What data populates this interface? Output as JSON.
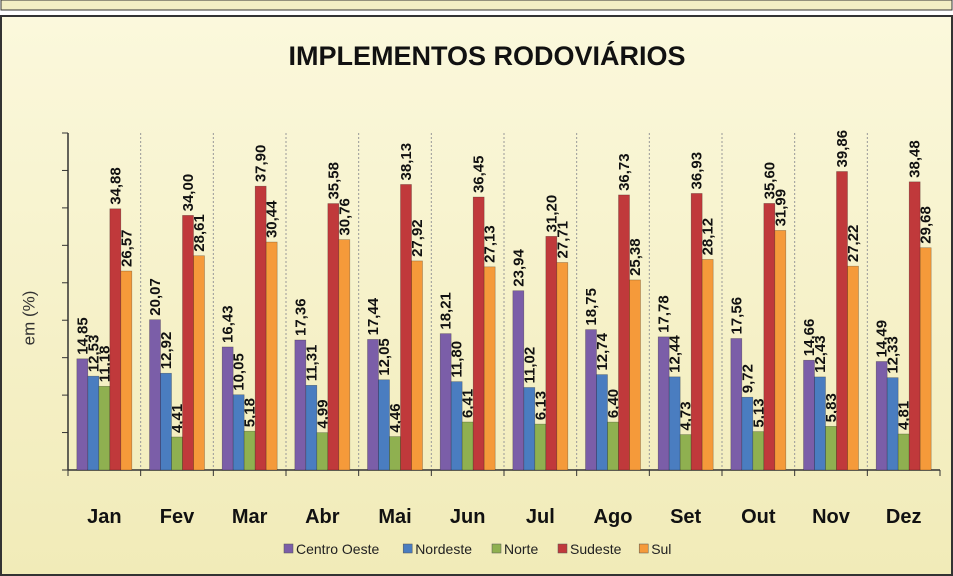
{
  "chart_data": {
    "type": "bar",
    "title": "IMPLEMENTOS RODOVIÁRIOS",
    "ylabel": "em (%)",
    "categories": [
      "Jan",
      "Fev",
      "Mar",
      "Abr",
      "Mai",
      "Jun",
      "Jul",
      "Ago",
      "Set",
      "Out",
      "Nov",
      "Dez"
    ],
    "series": [
      {
        "name": "Centro Oeste",
        "color": "#7b5ea8",
        "values": [
          14.85,
          20.07,
          16.43,
          17.36,
          17.44,
          18.21,
          23.94,
          18.75,
          17.78,
          17.56,
          14.66,
          14.49
        ],
        "value_labels": [
          "14,85",
          "20,07",
          "16,43",
          "17,36",
          "17,44",
          "18,21",
          "23,94",
          "18,75",
          "17,78",
          "17,56",
          "14,66",
          "14,49"
        ]
      },
      {
        "name": "Nordeste",
        "color": "#4a7dc0",
        "values": [
          12.53,
          12.92,
          10.05,
          11.31,
          12.05,
          11.8,
          11.02,
          12.74,
          12.44,
          9.72,
          12.43,
          12.33
        ],
        "value_labels": [
          "12,53",
          "12,92",
          "10,05",
          "11,31",
          "12,05",
          "11,80",
          "11,02",
          "12,74",
          "12,44",
          "9,72",
          "12,43",
          "12,33"
        ]
      },
      {
        "name": "Norte",
        "color": "#8fb050",
        "values": [
          11.18,
          4.41,
          5.18,
          4.99,
          4.46,
          6.41,
          6.13,
          6.4,
          4.73,
          5.13,
          5.83,
          4.81
        ],
        "value_labels": [
          "11,18",
          "4,41",
          "5,18",
          "4,99",
          "4,46",
          "6,41",
          "6,13",
          "6,40",
          "4,73",
          "5,13",
          "5,83",
          "4,81"
        ]
      },
      {
        "name": "Sudeste",
        "color": "#c0393b",
        "values": [
          34.88,
          34.0,
          37.9,
          35.58,
          38.13,
          36.45,
          31.2,
          36.73,
          36.93,
          35.6,
          39.86,
          38.48
        ],
        "value_labels": [
          "34,88",
          "34,00",
          "37,90",
          "35,58",
          "38,13",
          "36,45",
          "31,20",
          "36,73",
          "36,93",
          "35,60",
          "39,86",
          "38,48"
        ]
      },
      {
        "name": "Sul",
        "color": "#f59a3a",
        "values": [
          26.57,
          28.61,
          30.44,
          30.76,
          27.92,
          27.13,
          27.71,
          25.38,
          28.12,
          31.99,
          27.22,
          29.68
        ],
        "value_labels": [
          "26,57",
          "28,61",
          "30,44",
          "30,76",
          "27,92",
          "27,13",
          "27,71",
          "25,38",
          "28,12",
          "31,99",
          "27,22",
          "29,68"
        ]
      }
    ],
    "ylim": [
      0,
      45
    ],
    "yticks": [
      0,
      5,
      10,
      15,
      20,
      25,
      30,
      35,
      40,
      45
    ],
    "legend": "bottom"
  }
}
